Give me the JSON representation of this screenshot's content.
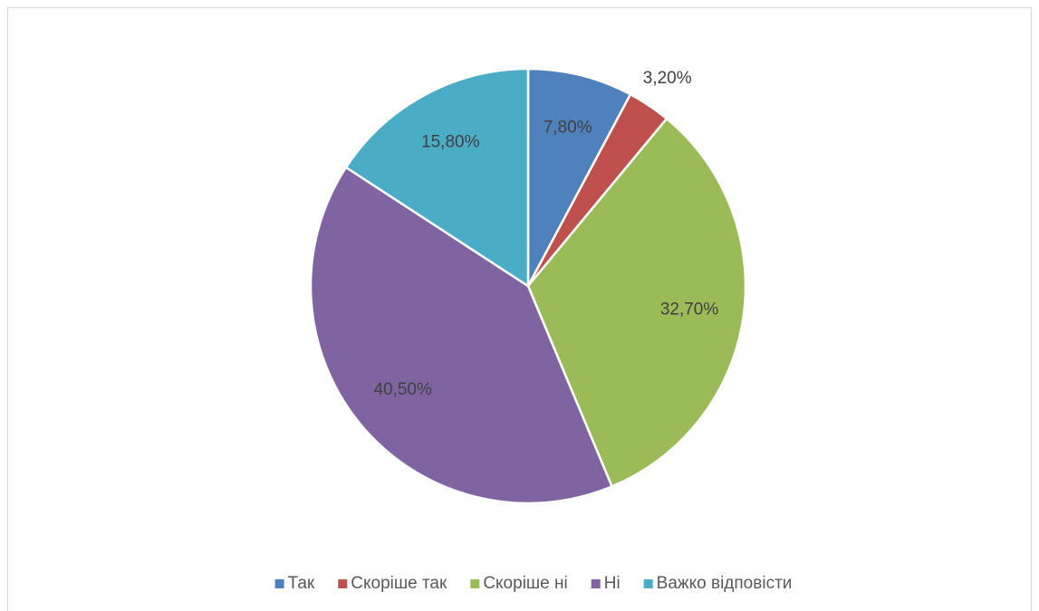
{
  "chart_data": {
    "type": "pie",
    "categories": [
      "Так",
      "Скоріше так",
      "Скоріше ні",
      "Ні",
      "Важко відповісти"
    ],
    "values": [
      7.8,
      3.2,
      32.7,
      40.5,
      15.8
    ],
    "value_labels": [
      "7,80%",
      "3,20%",
      "32,70%",
      "40,50%",
      "15,80%"
    ],
    "colors": [
      "#4f81bd",
      "#c0504d",
      "#9bbb59",
      "#8064a2",
      "#4bacc6"
    ],
    "legend": "bottom"
  }
}
